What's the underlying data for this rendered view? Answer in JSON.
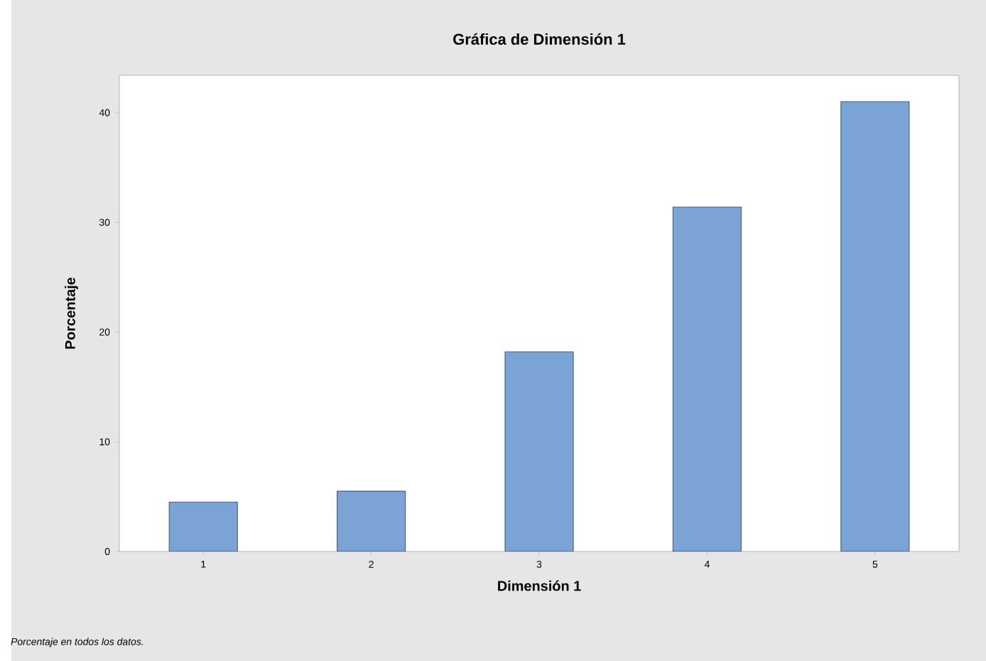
{
  "chart_data": {
    "type": "bar",
    "title": "Gráfica de Dimensión 1",
    "xlabel": "Dimensión 1",
    "ylabel": "Porcentaje",
    "categories": [
      "1",
      "2",
      "3",
      "4",
      "5"
    ],
    "values": [
      4.5,
      5.5,
      18.2,
      31.4,
      41.0
    ],
    "color": "#7ba3d6",
    "ylim": [
      0,
      43.4
    ],
    "yticks": [
      0,
      10,
      20,
      30,
      40
    ],
    "annotations": [
      "Porcentaje en todos los datos."
    ]
  }
}
